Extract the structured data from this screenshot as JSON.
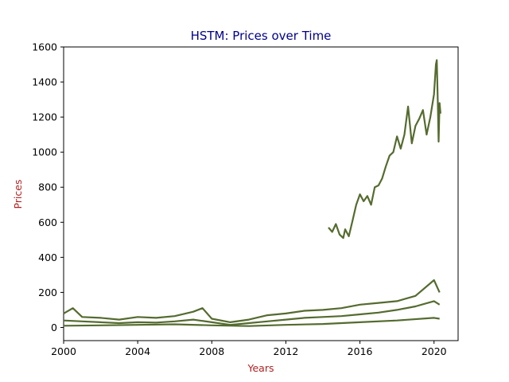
{
  "chart_data": {
    "type": "line",
    "title": "HSTM: Prices over Time",
    "xlabel": "Years",
    "ylabel": "Prices",
    "xlim": [
      2000.0,
      2021.3
    ],
    "ylim": [
      -75,
      1600
    ],
    "x_ticks": [
      2000,
      2004,
      2008,
      2012,
      2016,
      2020
    ],
    "y_ticks": [
      0,
      200,
      400,
      600,
      800,
      1000,
      1200,
      1400,
      1600
    ],
    "grid": false,
    "legend": "none",
    "colors": {
      "series": "#556b2f",
      "title": "#00008b",
      "axis_label": "#b22222",
      "axis": "#000000"
    },
    "series": [
      {
        "x": [
          2014.3,
          2014.5,
          2014.7,
          2014.9,
          2015.1,
          2015.2,
          2015.4,
          2015.6,
          2015.8,
          2016.0,
          2016.2,
          2016.4,
          2016.6,
          2016.8,
          2017.0,
          2017.2,
          2017.4,
          2017.6,
          2017.8,
          2018.0,
          2018.2,
          2018.4,
          2018.6,
          2018.8,
          2019.0,
          2019.2,
          2019.4,
          2019.6,
          2019.8,
          2020.0,
          2020.1,
          2020.15,
          2020.2,
          2020.25,
          2020.3,
          2020.35
        ],
        "y": [
          570,
          545,
          590,
          530,
          510,
          560,
          520,
          610,
          700,
          760,
          720,
          750,
          700,
          800,
          810,
          850,
          920,
          980,
          1000,
          1090,
          1020,
          1100,
          1260,
          1050,
          1150,
          1190,
          1240,
          1100,
          1200,
          1330,
          1500,
          1525,
          1300,
          1060,
          1280,
          1220
        ]
      },
      {
        "x": [
          2000.0,
          2000.5,
          2001.0,
          2002.0,
          2003.0,
          2004.0,
          2005.0,
          2006.0,
          2007.0,
          2007.5,
          2008.0,
          2009.0,
          2010.0,
          2011.0,
          2012.0,
          2013.0,
          2014.0,
          2015.0,
          2016.0,
          2017.0,
          2018.0,
          2019.0,
          2020.0,
          2020.3
        ],
        "y": [
          80,
          110,
          60,
          55,
          45,
          60,
          55,
          65,
          90,
          110,
          50,
          30,
          45,
          70,
          80,
          95,
          100,
          110,
          130,
          140,
          150,
          180,
          270,
          200
        ]
      },
      {
        "x": [
          2000.0,
          2001.0,
          2002.0,
          2003.0,
          2004.0,
          2005.0,
          2006.0,
          2007.0,
          2008.0,
          2009.0,
          2010.0,
          2011.0,
          2012.0,
          2013.0,
          2014.0,
          2015.0,
          2016.0,
          2017.0,
          2018.0,
          2019.0,
          2020.0,
          2020.3
        ],
        "y": [
          40,
          35,
          30,
          25,
          30,
          28,
          35,
          45,
          30,
          15,
          25,
          35,
          45,
          55,
          60,
          65,
          75,
          85,
          100,
          120,
          150,
          130
        ]
      },
      {
        "x": [
          2000.0,
          2002.0,
          2004.0,
          2006.0,
          2008.0,
          2010.0,
          2012.0,
          2014.0,
          2016.0,
          2018.0,
          2020.0,
          2020.3
        ],
        "y": [
          10,
          12,
          15,
          18,
          12,
          8,
          15,
          20,
          30,
          40,
          55,
          50
        ]
      }
    ]
  }
}
